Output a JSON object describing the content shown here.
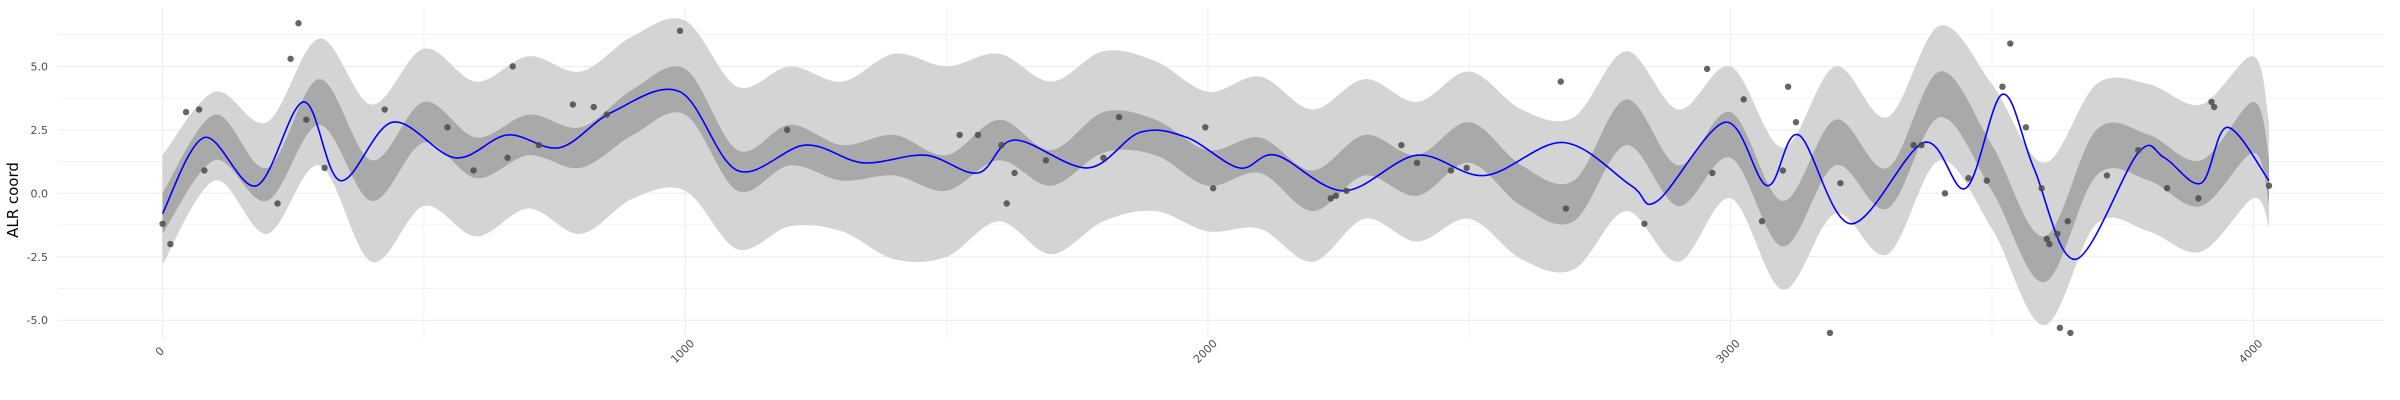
{
  "chart_data": {
    "type": "line",
    "title": "",
    "xlabel": "",
    "ylabel": "ALR coord",
    "xlim": [
      -200,
      4250
    ],
    "ylim": [
      -5.7,
      7.3
    ],
    "x_major_ticks": [
      0,
      1000,
      2000,
      3000,
      4000
    ],
    "x_minor_ticks": [
      500,
      1500,
      2500,
      3500
    ],
    "x_tick_labels": [
      "0",
      "1000",
      "2000",
      "3000",
      "4000"
    ],
    "y_major_ticks": [
      -5,
      -2.5,
      0,
      2.5,
      5
    ],
    "y_minor_ticks": [
      -3.75,
      -1.25,
      1.25,
      3.75,
      6.25
    ],
    "y_tick_labels": [
      "-5.0",
      "-2.5",
      "0.0",
      "2.5",
      "5.0"
    ],
    "grid": true,
    "legend": "none",
    "colors": {
      "line": "#0000ff",
      "inner_band": "#a9a9a9",
      "outer_band": "#d4d4d4",
      "points": "#4a4a4a"
    },
    "series": [
      {
        "kind": "mean-line",
        "x": [
          0,
          80,
          180,
          270,
          340,
          440,
          560,
          660,
          760,
          860,
          990,
          1100,
          1230,
          1340,
          1460,
          1560,
          1630,
          1770,
          1870,
          1960,
          2060,
          2130,
          2260,
          2400,
          2530,
          2680,
          2810,
          2860,
          2990,
          3070,
          3130,
          3230,
          3370,
          3450,
          3520,
          3580,
          3660,
          3780,
          3830,
          3900,
          3950,
          4030
        ],
        "y": [
          -0.8,
          2.2,
          0.3,
          3.6,
          0.5,
          2.8,
          1.4,
          2.3,
          1.8,
          3.2,
          4.0,
          0.9,
          1.9,
          1.2,
          1.5,
          0.8,
          2.1,
          1.0,
          2.4,
          2.2,
          1.0,
          1.5,
          0.1,
          1.5,
          0.7,
          2.0,
          0.3,
          -0.3,
          2.8,
          0.3,
          2.3,
          -1.2,
          2.0,
          0.2,
          3.9,
          1.0,
          -2.6,
          1.6,
          1.4,
          0.4,
          2.6,
          0.5
        ]
      },
      {
        "kind": "inner-band",
        "x": [
          0,
          100,
          200,
          300,
          400,
          500,
          600,
          700,
          800,
          900,
          1000,
          1100,
          1200,
          1300,
          1400,
          1500,
          1600,
          1700,
          1800,
          1900,
          2000,
          2100,
          2200,
          2300,
          2400,
          2500,
          2600,
          2700,
          2800,
          2900,
          3000,
          3100,
          3200,
          3300,
          3400,
          3500,
          3600,
          3700,
          3800,
          3900,
          4000,
          4030
        ],
        "lower": [
          -1.6,
          1.3,
          -0.3,
          2.7,
          -0.3,
          2.0,
          0.6,
          1.5,
          1.0,
          2.3,
          3.1,
          0.1,
          1.1,
          0.5,
          0.7,
          0.1,
          1.3,
          0.3,
          1.6,
          1.5,
          0.3,
          0.8,
          -0.7,
          0.7,
          -0.1,
          1.2,
          -0.5,
          -1.1,
          1.9,
          -0.5,
          1.4,
          -2.1,
          1.1,
          -0.6,
          3.0,
          0.1,
          -3.5,
          0.7,
          0.5,
          -0.5,
          1.6,
          -0.4
        ],
        "upper": [
          0.0,
          3.1,
          1.0,
          4.5,
          1.3,
          3.6,
          2.2,
          3.1,
          2.6,
          4.1,
          4.9,
          1.7,
          2.7,
          1.9,
          2.3,
          1.5,
          2.9,
          1.7,
          3.2,
          2.9,
          1.7,
          2.2,
          0.9,
          2.3,
          1.5,
          2.8,
          1.1,
          0.5,
          3.7,
          1.1,
          3.2,
          -0.3,
          2.9,
          1.0,
          4.8,
          1.9,
          -1.7,
          2.5,
          2.3,
          1.3,
          3.6,
          1.4
        ]
      },
      {
        "kind": "outer-band",
        "x": [
          0,
          100,
          200,
          300,
          400,
          500,
          600,
          700,
          800,
          900,
          1000,
          1100,
          1200,
          1300,
          1400,
          1500,
          1600,
          1700,
          1800,
          1900,
          2000,
          2100,
          2200,
          2300,
          2400,
          2500,
          2600,
          2700,
          2800,
          2900,
          3000,
          3100,
          3200,
          3300,
          3400,
          3500,
          3600,
          3700,
          3800,
          3900,
          4000,
          4030
        ],
        "lower": [
          -2.8,
          0.5,
          -1.6,
          1.1,
          -2.7,
          -0.5,
          -1.7,
          -0.6,
          -1.6,
          -0.2,
          0.1,
          -2.2,
          -1.3,
          -1.5,
          -2.6,
          -2.5,
          -1.1,
          -2.4,
          -1.1,
          -0.7,
          -1.5,
          -1.4,
          -2.7,
          -1.0,
          -1.9,
          -1.0,
          -2.6,
          -3.0,
          -0.7,
          -2.7,
          -0.2,
          -3.8,
          -0.8,
          -2.4,
          1.3,
          -1.4,
          -5.2,
          -1.2,
          -1.5,
          -2.3,
          -0.2,
          -1.3
        ],
        "upper": [
          1.5,
          4.0,
          2.8,
          6.1,
          3.5,
          5.7,
          4.4,
          5.4,
          4.8,
          6.2,
          6.8,
          4.2,
          5.0,
          4.4,
          5.5,
          5.0,
          5.5,
          4.4,
          5.6,
          5.2,
          4.0,
          4.6,
          3.3,
          4.5,
          3.6,
          4.8,
          3.3,
          3.0,
          5.6,
          3.3,
          5.0,
          1.8,
          5.0,
          3.0,
          6.6,
          4.3,
          1.2,
          4.3,
          4.3,
          3.5,
          5.4,
          2.8
        ]
      },
      {
        "kind": "observed-points",
        "x": [
          0,
          15,
          45,
          70,
          80,
          220,
          245,
          260,
          275,
          310,
          425,
          545,
          595,
          660,
          670,
          720,
          785,
          825,
          850,
          990,
          1195,
          1525,
          1560,
          1605,
          1615,
          1630,
          1690,
          1800,
          1830,
          1995,
          2010,
          2235,
          2245,
          2265,
          2370,
          2400,
          2465,
          2495,
          2675,
          2685,
          2835,
          2955,
          2965,
          3025,
          3060,
          3100,
          3110,
          3125,
          3190,
          3210,
          3350,
          3365,
          3410,
          3455,
          3490,
          3520,
          3535,
          3565,
          3595,
          3605,
          3610,
          3625,
          3630,
          3645,
          3650,
          3720,
          3780,
          3835,
          3895,
          3920,
          3925,
          4030
        ],
        "y": [
          -1.2,
          -2.0,
          3.2,
          3.3,
          0.9,
          -0.4,
          5.3,
          6.7,
          2.9,
          1.0,
          3.3,
          2.6,
          0.9,
          1.4,
          5.0,
          1.9,
          3.5,
          3.4,
          3.1,
          6.4,
          2.5,
          2.3,
          2.3,
          1.9,
          -0.4,
          0.8,
          1.3,
          1.4,
          3.0,
          2.6,
          0.2,
          -0.2,
          -0.1,
          0.1,
          1.9,
          1.2,
          0.9,
          1.0,
          4.4,
          -0.6,
          -1.2,
          4.9,
          0.8,
          3.7,
          -1.1,
          0.9,
          4.2,
          2.8,
          -5.5,
          0.4,
          1.9,
          1.9,
          0.0,
          0.6,
          0.5,
          4.2,
          5.9,
          2.6,
          0.2,
          -1.8,
          -2.0,
          -1.6,
          -5.3,
          -1.1,
          -5.5,
          0.7,
          1.7,
          0.2,
          -0.2,
          3.6,
          3.4,
          0.3
        ]
      }
    ]
  }
}
